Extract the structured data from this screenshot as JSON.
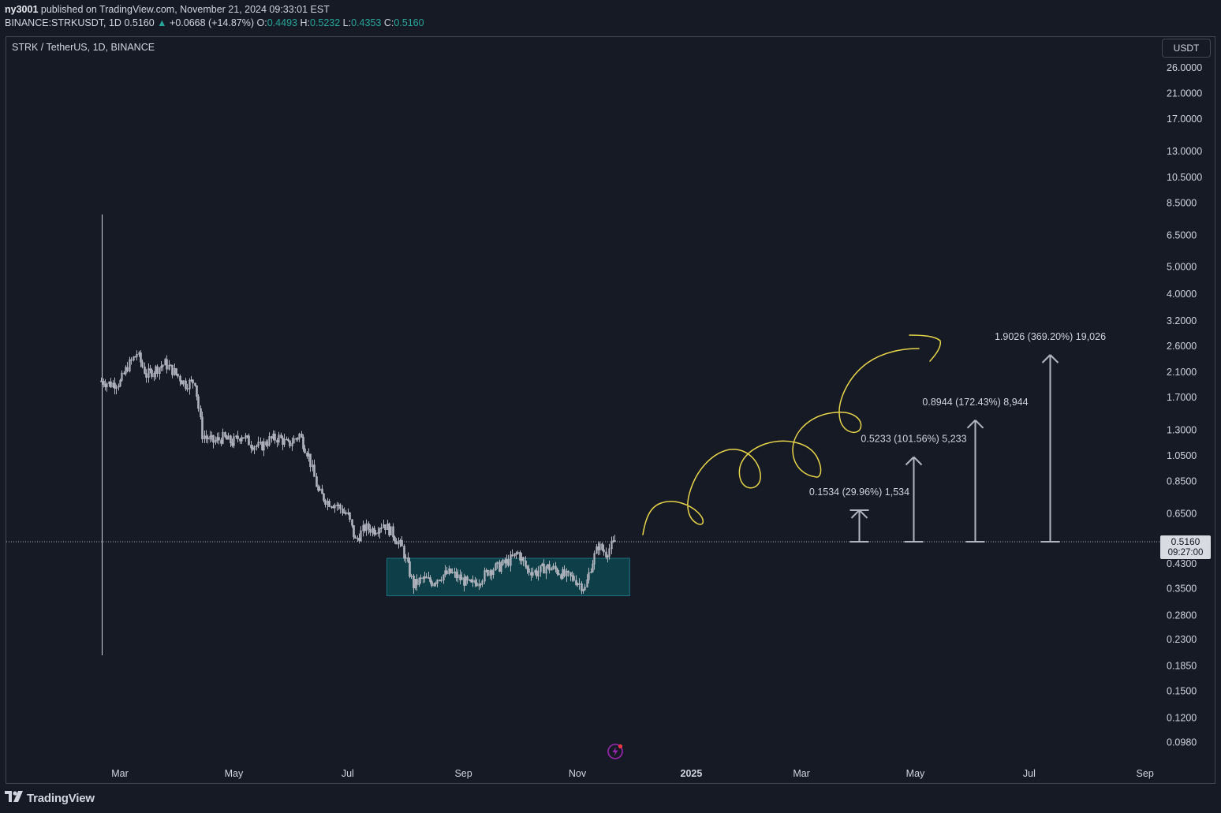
{
  "header": {
    "author": "ny3001",
    "published_text": "published on TradingView.com, November 21, 2024 09:33:01 EST"
  },
  "ticker_line": {
    "symbol": "BINANCE:STRKUSDT, 1D",
    "last": "0.5160",
    "change_arrow": "▲",
    "change": "+0.0668 (+14.87%)",
    "o_label": "O:",
    "o": "0.4493",
    "h_label": "H:",
    "h": "0.5232",
    "l_label": "L:",
    "l": "0.4353",
    "c_label": "C:",
    "c": "0.5160"
  },
  "legend": {
    "title": "STRK / TetherUS, 1D, BINANCE"
  },
  "currency_button": {
    "label": "USDT"
  },
  "price_badge": {
    "price": "0.5160",
    "countdown": "09:27:00"
  },
  "footer": {
    "brand": "TradingView"
  },
  "colors": {
    "background": "#161a25",
    "candle": "#b2b5be",
    "zone_fill": "#0d4650",
    "zone_border": "#20828f",
    "scribble": "#e8d54a",
    "text": "#d1d4dc"
  },
  "icons": {
    "alert": "lightning-bolt-icon",
    "logo": "tradingview-logo-icon"
  },
  "chart_data": {
    "type": "line",
    "scale": "log",
    "y_ticks": [
      "26.0000",
      "21.0000",
      "17.0000",
      "13.0000",
      "10.5000",
      "8.5000",
      "6.5000",
      "5.0000",
      "4.0000",
      "3.2000",
      "2.6000",
      "2.1000",
      "1.7000",
      "1.3000",
      "1.0500",
      "0.8500",
      "0.6500",
      "0.4300",
      "0.3500",
      "0.2800",
      "0.2300",
      "0.1850",
      "0.1500",
      "0.1200",
      "0.0980"
    ],
    "x_ticks": [
      "Mar",
      "May",
      "Jul",
      "Sep",
      "Nov",
      "2025",
      "Mar",
      "May",
      "Jul",
      "Sep"
    ],
    "x_ticks_bold": [
      "2025"
    ],
    "last_price": 0.516,
    "series": [
      {
        "values": [
          [
            "2024-02-20",
            1.95
          ],
          [
            "2024-02-25",
            1.9
          ],
          [
            "2024-03-01",
            1.93
          ],
          [
            "2024-03-05",
            2.2
          ],
          [
            "2024-03-10",
            2.45
          ],
          [
            "2024-03-15",
            2.05
          ],
          [
            "2024-03-20",
            2.15
          ],
          [
            "2024-03-25",
            2.25
          ],
          [
            "2024-03-30",
            2.1
          ],
          [
            "2024-04-05",
            1.9
          ],
          [
            "2024-04-10",
            1.95
          ],
          [
            "2024-04-14",
            1.25
          ],
          [
            "2024-04-20",
            1.18
          ],
          [
            "2024-04-25",
            1.22
          ],
          [
            "2024-04-30",
            1.17
          ],
          [
            "2024-05-05",
            1.25
          ],
          [
            "2024-05-10",
            1.16
          ],
          [
            "2024-05-15",
            1.13
          ],
          [
            "2024-05-20",
            1.2
          ],
          [
            "2024-05-25",
            1.22
          ],
          [
            "2024-05-30",
            1.15
          ],
          [
            "2024-06-05",
            1.25
          ],
          [
            "2024-06-10",
            1.05
          ],
          [
            "2024-06-15",
            0.78
          ],
          [
            "2024-06-20",
            0.72
          ],
          [
            "2024-06-25",
            0.7
          ],
          [
            "2024-07-01",
            0.64
          ],
          [
            "2024-07-05",
            0.52
          ],
          [
            "2024-07-10",
            0.58
          ],
          [
            "2024-07-15",
            0.57
          ],
          [
            "2024-07-20",
            0.6
          ],
          [
            "2024-07-25",
            0.55
          ],
          [
            "2024-07-30",
            0.49
          ],
          [
            "2024-08-05",
            0.36
          ],
          [
            "2024-08-10",
            0.38
          ],
          [
            "2024-08-15",
            0.37
          ],
          [
            "2024-08-20",
            0.39
          ],
          [
            "2024-08-25",
            0.4
          ],
          [
            "2024-08-30",
            0.38
          ],
          [
            "2024-09-05",
            0.36
          ],
          [
            "2024-09-10",
            0.38
          ],
          [
            "2024-09-15",
            0.41
          ],
          [
            "2024-09-20",
            0.42
          ],
          [
            "2024-09-25",
            0.44
          ],
          [
            "2024-09-30",
            0.47
          ],
          [
            "2024-10-05",
            0.41
          ],
          [
            "2024-10-10",
            0.4
          ],
          [
            "2024-10-15",
            0.42
          ],
          [
            "2024-10-20",
            0.41
          ],
          [
            "2024-10-25",
            0.39
          ],
          [
            "2024-10-30",
            0.38
          ],
          [
            "2024-11-05",
            0.35
          ],
          [
            "2024-11-08",
            0.42
          ],
          [
            "2024-11-12",
            0.5
          ],
          [
            "2024-11-16",
            0.47
          ],
          [
            "2024-11-21",
            0.516
          ]
        ]
      }
    ],
    "annotations": {
      "range_box": {
        "x_start": "2024-07-22",
        "x_end": "2024-11-29",
        "y_low": 0.33,
        "y_high": 0.45
      },
      "measure_arrows": [
        {
          "date": "2025-04-01",
          "from": 0.516,
          "to": 0.67,
          "label": "0.1534 (29.96%) 1,534"
        },
        {
          "date": "2025-04-30",
          "from": 0.516,
          "to": 1.04,
          "label": "0.5233 (101.56%) 5,233"
        },
        {
          "date": "2025-06-02",
          "from": 0.516,
          "to": 1.41,
          "label": "0.8944 (172.43%) 8,944"
        },
        {
          "date": "2025-07-12",
          "from": 0.516,
          "to": 2.42,
          "label": "1.9026 (369.20%) 19,026"
        }
      ]
    }
  }
}
